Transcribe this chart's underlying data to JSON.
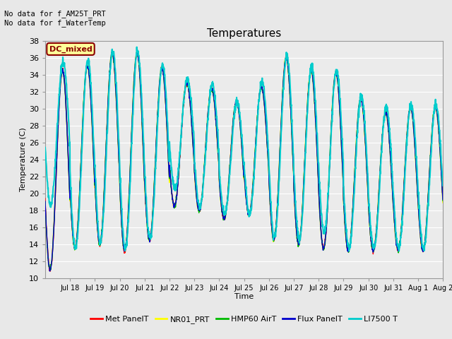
{
  "title": "Temperatures",
  "xlabel": "Time",
  "ylabel": "Temperature (C)",
  "ylim": [
    10,
    38
  ],
  "yticks": [
    10,
    12,
    14,
    16,
    18,
    20,
    22,
    24,
    26,
    28,
    30,
    32,
    34,
    36,
    38
  ],
  "annotation_text": "No data for f_AM25T_PRT\nNo data for f_WaterTemp",
  "legend_box_text": "DC_mixed",
  "legend_box_color": "#8B0000",
  "legend_box_bg": "#FFFF99",
  "legend_entries": [
    "Met PanelT",
    "NR01_PRT",
    "HMP60 AirT",
    "Flux PanelT",
    "LI7500 T"
  ],
  "line_colors": [
    "#FF0000",
    "#FFFF00",
    "#00BB00",
    "#0000CC",
    "#00CCCC"
  ],
  "line_widths": [
    1.0,
    1.0,
    1.0,
    1.0,
    1.5
  ],
  "background_color": "#E8E8E8",
  "plot_bg_color": "#EBEBEB",
  "grid_color": "#FFFFFF",
  "x_tick_labels": [
    "Jul 18",
    "Jul 19",
    "Jul 20",
    "Jul 21",
    "Jul 22",
    "Jul 23",
    "Jul 24",
    "Jul 25",
    "Jul 26",
    "Jul 27",
    "Jul 28",
    "Jul 29",
    "Jul 30",
    "Jul 31",
    "Aug 1",
    "Aug 2"
  ],
  "x_tick_positions": [
    1,
    2,
    3,
    4,
    5,
    6,
    7,
    8,
    9,
    10,
    11,
    12,
    13,
    14,
    15,
    16
  ],
  "day_peaks": [
    34.5,
    35.0,
    36.5,
    36.5,
    34.8,
    33.0,
    32.3,
    30.8,
    32.5,
    36.0,
    34.5,
    34.2,
    31.2,
    29.5,
    30.1,
    30.2,
    30.0
  ],
  "day_mins": [
    11.0,
    13.5,
    14.0,
    13.2,
    14.5,
    18.5,
    18.0,
    17.0,
    17.5,
    14.5,
    14.0,
    13.5,
    13.2,
    13.2,
    13.3,
    13.3,
    16.0
  ],
  "li_peaks": [
    35.5,
    35.8,
    36.8,
    36.8,
    35.2,
    33.5,
    32.8,
    30.8,
    33.2,
    36.2,
    35.0,
    34.5,
    31.5,
    30.2,
    30.5,
    30.5,
    30.5
  ],
  "li_mins": [
    18.5,
    13.5,
    14.2,
    13.5,
    14.7,
    20.5,
    18.5,
    17.5,
    17.5,
    14.8,
    14.5,
    15.5,
    13.5,
    13.5,
    13.5,
    13.5,
    16.5
  ],
  "num_points_per_day": 120
}
